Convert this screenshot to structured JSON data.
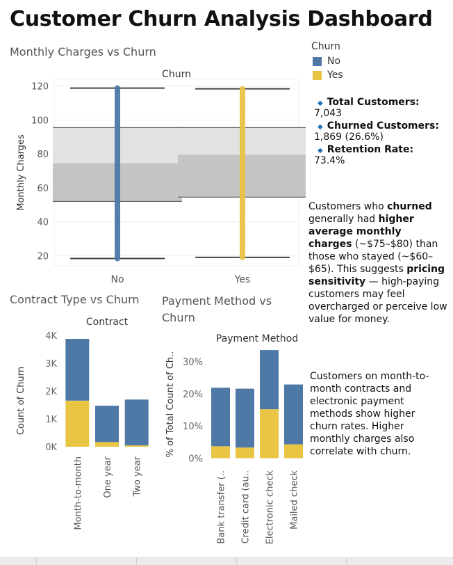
{
  "dashboard": {
    "title": "Customer Churn Analysis Dashboard"
  },
  "legend": {
    "title": "Churn",
    "items": [
      {
        "label": "No",
        "color": "#4e79a7"
      },
      {
        "label": "Yes",
        "color": "#e9c543"
      }
    ]
  },
  "kpis": [
    {
      "label": "Total Customers:",
      "value": "7,043"
    },
    {
      "label": "Churned Customers:",
      "value": "1,869 (26.6%)"
    },
    {
      "label": "Retention Rate:",
      "value": "73.4%"
    }
  ],
  "notes": {
    "note1": [
      {
        "text": "Customers who "
      },
      {
        "text": "churned",
        "bold": true
      },
      {
        "text": " generally had "
      },
      {
        "text": "higher average monthly charges",
        "bold": true
      },
      {
        "text": " (~$75–$80) than those who stayed (~$60–$65). This suggests "
      },
      {
        "text": "pricing sensitivity",
        "bold": true
      },
      {
        "text": " — high-paying customers may feel overcharged or perceive low value for money."
      }
    ],
    "note2": "Customers on month-to-month contracts and electronic payment methods show higher churn rates. Higher monthly charges also correlate with churn."
  },
  "chart_data": [
    {
      "type": "box",
      "title": "Monthly Charges vs Churn",
      "header": "Churn",
      "ylabel": "Monthly Charges",
      "ylim": [
        14,
        124
      ],
      "yticks": [
        20,
        40,
        60,
        80,
        100,
        120
      ],
      "categories": [
        "No",
        "Yes"
      ],
      "boxes": [
        {
          "category": "No",
          "color": "#4e79a7",
          "min": 18.3,
          "q1": 52,
          "median": 74.5,
          "q3": 95.5,
          "max": 118.8
        },
        {
          "category": "Yes",
          "color": "#e9c543",
          "min": 19,
          "q1": 54.5,
          "median": 79.5,
          "q3": 95.5,
          "max": 118.4
        }
      ]
    },
    {
      "type": "bar",
      "stacked": true,
      "title": "Contract Type vs Churn",
      "header": "Contract",
      "ylabel": "Count of Churn",
      "ylim": [
        -700,
        4000
      ],
      "yticks": [
        {
          "value": 0,
          "label": "0K"
        },
        {
          "value": 1000,
          "label": "1K"
        },
        {
          "value": 2000,
          "label": "2K"
        },
        {
          "value": 3000,
          "label": "3K"
        },
        {
          "value": 4000,
          "label": "4K"
        }
      ],
      "categories": [
        "Month-to-month",
        "One year",
        "Two year"
      ],
      "series": [
        {
          "name": "Yes",
          "color": "#e9c543",
          "values": [
            1655,
            166,
            48
          ]
        },
        {
          "name": "No",
          "color": "#4e79a7",
          "values": [
            2220,
            1307,
            1647
          ]
        }
      ]
    },
    {
      "type": "bar",
      "stacked": true,
      "title": "Payment Method vs Churn",
      "header": "Payment Method",
      "ylabel": "% of Total Count of Ch..",
      "ylim": [
        -2.5,
        36
      ],
      "yticks": [
        {
          "value": 0,
          "label": "0%"
        },
        {
          "value": 10,
          "label": "10%"
        },
        {
          "value": 20,
          "label": "20%"
        },
        {
          "value": 30,
          "label": "30%"
        }
      ],
      "categories": [
        "Bank transfer (..",
        "Credit card (au..",
        "Electronic check",
        "Mailed check"
      ],
      "series": [
        {
          "name": "Yes",
          "color": "#e9c543",
          "values": [
            3.7,
            3.3,
            15.2,
            4.3
          ]
        },
        {
          "name": "No",
          "color": "#4e79a7",
          "values": [
            18.2,
            18.3,
            18.4,
            18.6
          ]
        }
      ]
    }
  ]
}
